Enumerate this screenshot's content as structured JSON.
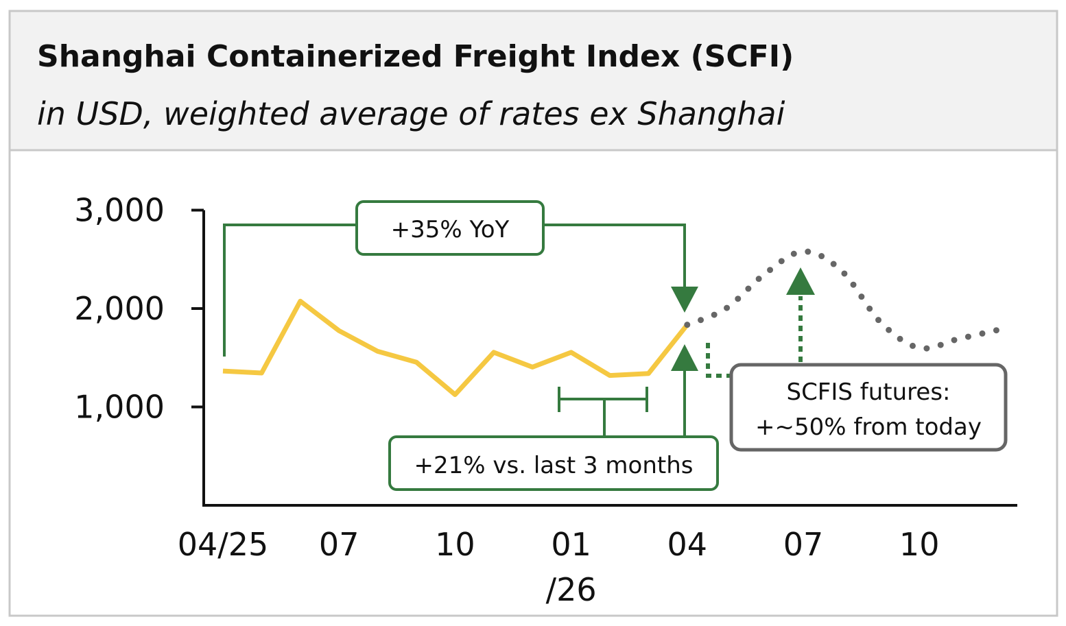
{
  "chart_data": {
    "type": "line",
    "title": "Shanghai Containerized Freight Index (SCFI)",
    "subtitle": "in USD, weighted average of rates ex Shanghai",
    "ylim": [
      0,
      3000
    ],
    "yticks": [
      1000,
      2000,
      3000
    ],
    "ytick_labels": [
      "1,000",
      "2,000",
      "3,000"
    ],
    "xtick_labels": [
      {
        "month": "2025-04",
        "label": "04/25"
      },
      {
        "month": "2025-07",
        "label": "07"
      },
      {
        "month": "2025-10",
        "label": "10"
      },
      {
        "month": "2026-01",
        "label": "01",
        "label2": "/26"
      },
      {
        "month": "2026-04",
        "label": "04"
      },
      {
        "month": "2026-07",
        "label": "07"
      },
      {
        "month": "2026-10",
        "label": "10"
      }
    ],
    "grid": false,
    "series": [
      {
        "style": "solid",
        "color": "#F5C842",
        "x": [
          "2025-04",
          "2025-05",
          "2025-06",
          "2025-07",
          "2025-08",
          "2025-09",
          "2025-10",
          "2025-11",
          "2025-12",
          "2026-01",
          "2026-02",
          "2026-03",
          "2026-04"
        ],
        "values": [
          1365,
          1345,
          2075,
          1775,
          1565,
          1455,
          1125,
          1555,
          1405,
          1555,
          1320,
          1340,
          1835
        ]
      },
      {
        "style": "dotted",
        "color": "#666666",
        "x": [
          "2026-04",
          "2026-05",
          "2026-06",
          "2026-07",
          "2026-08",
          "2026-09",
          "2026-10",
          "2026-11",
          "2026-12"
        ],
        "values": [
          1835,
          2000,
          2350,
          2580,
          2380,
          1860,
          1600,
          1690,
          1780
        ]
      }
    ],
    "annotations": [
      {
        "text": "+35% YoY",
        "color": "#357A3F"
      },
      {
        "text": "+21% vs. last 3 months",
        "color": "#357A3F"
      },
      {
        "text_line1": "SCFIS futures:",
        "text_line2": "+~50% from today",
        "color": "#666666"
      }
    ]
  }
}
